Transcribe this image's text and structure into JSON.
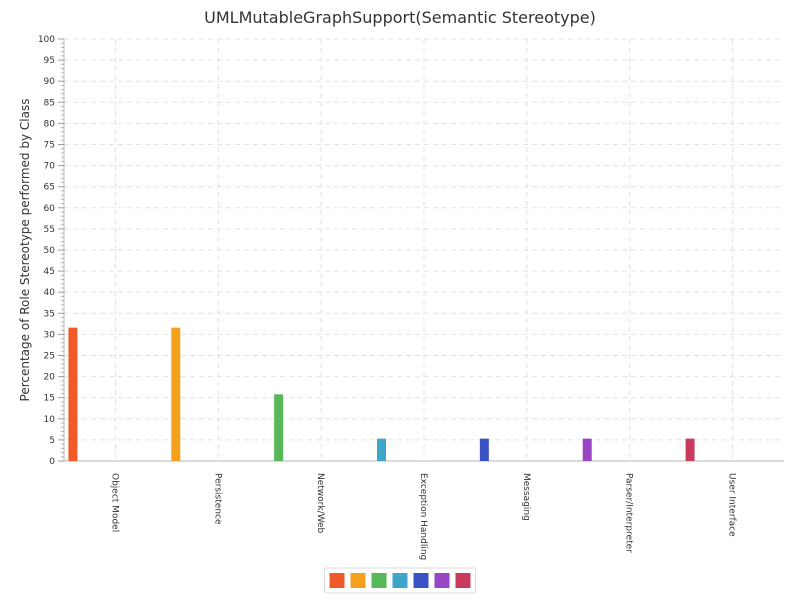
{
  "chart_data": {
    "type": "bar",
    "title": "UMLMutableGraphSupport(Semantic Stereotype)",
    "xlabel": "",
    "ylabel": "Percentage of Role Stereotype performed by Class",
    "ylim": [
      0,
      100
    ],
    "yticks": [
      0,
      5,
      10,
      15,
      20,
      25,
      30,
      35,
      40,
      45,
      50,
      55,
      60,
      65,
      70,
      75,
      80,
      85,
      90,
      95,
      100
    ],
    "grid": true,
    "legend_position": "bottom-center",
    "categories": [
      "Object Model",
      "Persistence",
      "Network/Web",
      "Exception Handling",
      "Messaging",
      "Parser/Interpreter",
      "User Interface"
    ],
    "values": [
      31.6,
      31.6,
      15.8,
      5.3,
      5.3,
      5.3,
      5.3
    ],
    "colors": [
      "#f05a28",
      "#f5a11c",
      "#58b759",
      "#3ea6c8",
      "#3a53c4",
      "#9846c6",
      "#c93a5f"
    ]
  }
}
